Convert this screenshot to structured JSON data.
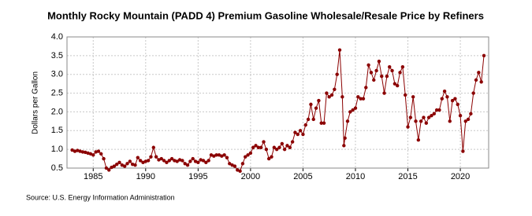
{
  "chart_data": {
    "type": "line",
    "title": "Monthly Rocky Mountain (PADD 4) Premium Gasoline Wholesale/Resale Price by Refiners",
    "y_label": "Dollars per Gallon",
    "source": "Source: U.S. Energy Information Administration",
    "color": "#8b0000",
    "grid": true,
    "xlim": [
      1982.5,
      2022.7
    ],
    "xticks": [
      1985,
      1990,
      1995,
      2000,
      2005,
      2010,
      2015,
      2020
    ],
    "ylim": [
      0.5,
      4.0
    ],
    "yticks": [
      0.5,
      {
        "value": 1,
        "label": "1.0"
      },
      1.5,
      {
        "value": 2,
        "label": "2.0"
      },
      2.5,
      {
        "value": 3,
        "label": "3.0"
      },
      3.5,
      {
        "value": 4,
        "label": "4.0"
      }
    ],
    "x": [
      1983,
      1983.25,
      1983.5,
      1983.75,
      1984,
      1984.25,
      1984.5,
      1984.75,
      1985,
      1985.25,
      1985.5,
      1985.75,
      1986,
      1986.25,
      1986.5,
      1986.75,
      1987,
      1987.25,
      1987.5,
      1987.75,
      1988,
      1988.25,
      1988.5,
      1988.75,
      1989,
      1989.25,
      1989.5,
      1989.75,
      1990,
      1990.25,
      1990.5,
      1990.75,
      1991,
      1991.25,
      1991.5,
      1991.75,
      1992,
      1992.25,
      1992.5,
      1992.75,
      1993,
      1993.25,
      1993.5,
      1993.75,
      1994,
      1994.25,
      1994.5,
      1994.75,
      1995,
      1995.25,
      1995.5,
      1995.75,
      1996,
      1996.25,
      1996.5,
      1996.75,
      1997,
      1997.25,
      1997.5,
      1997.75,
      1998,
      1998.25,
      1998.5,
      1998.75,
      1999,
      1999.25,
      1999.5,
      1999.75,
      2000,
      2000.25,
      2000.5,
      2000.75,
      2001,
      2001.25,
      2001.5,
      2001.75,
      2002,
      2002.25,
      2002.5,
      2002.75,
      2003,
      2003.25,
      2003.5,
      2003.75,
      2004,
      2004.25,
      2004.5,
      2004.75,
      2005,
      2005.25,
      2005.5,
      2005.75,
      2006,
      2006.25,
      2006.5,
      2006.75,
      2007,
      2007.25,
      2007.5,
      2007.75,
      2008,
      2008.25,
      2008.5,
      2008.75,
      2008.9,
      2009,
      2009.25,
      2009.5,
      2009.75,
      2010,
      2010.25,
      2010.5,
      2010.75,
      2011,
      2011.25,
      2011.5,
      2011.75,
      2012,
      2012.25,
      2012.5,
      2012.75,
      2013,
      2013.25,
      2013.5,
      2013.75,
      2014,
      2014.25,
      2014.5,
      2014.75,
      2015,
      2015.25,
      2015.5,
      2015.75,
      2016,
      2016.25,
      2016.5,
      2016.75,
      2017,
      2017.25,
      2017.5,
      2017.75,
      2018,
      2018.25,
      2018.5,
      2018.75,
      2019,
      2019.25,
      2019.5,
      2019.75,
      2020,
      2020.25,
      2020.5,
      2020.75,
      2021,
      2021.25,
      2021.5,
      2021.75,
      2022,
      2022.25
    ],
    "values": [
      0.98,
      0.95,
      0.97,
      0.95,
      0.93,
      0.92,
      0.9,
      0.88,
      0.85,
      0.93,
      0.95,
      0.88,
      0.75,
      0.5,
      0.45,
      0.52,
      0.55,
      0.6,
      0.65,
      0.58,
      0.55,
      0.62,
      0.68,
      0.6,
      0.58,
      0.78,
      0.7,
      0.65,
      0.68,
      0.7,
      0.8,
      1.05,
      0.8,
      0.72,
      0.75,
      0.7,
      0.65,
      0.7,
      0.75,
      0.7,
      0.68,
      0.72,
      0.7,
      0.62,
      0.58,
      0.68,
      0.75,
      0.68,
      0.65,
      0.72,
      0.7,
      0.65,
      0.7,
      0.85,
      0.82,
      0.85,
      0.85,
      0.82,
      0.85,
      0.78,
      0.62,
      0.58,
      0.55,
      0.45,
      0.42,
      0.62,
      0.8,
      0.85,
      0.9,
      1.05,
      1.1,
      1.05,
      1.05,
      1.2,
      1.0,
      0.75,
      0.8,
      1.05,
      1.0,
      1.05,
      1.15,
      1.0,
      1.1,
      1.05,
      1.2,
      1.45,
      1.4,
      1.5,
      1.4,
      1.65,
      1.8,
      2.2,
      1.8,
      2.1,
      2.3,
      1.7,
      1.7,
      2.5,
      2.4,
      2.45,
      2.6,
      3.0,
      3.65,
      2.4,
      1.1,
      1.3,
      1.75,
      2.0,
      2.05,
      2.1,
      2.4,
      2.35,
      2.35,
      2.65,
      3.25,
      3.05,
      2.85,
      3.1,
      3.35,
      2.95,
      2.5,
      2.95,
      3.2,
      3.1,
      2.75,
      2.7,
      3.05,
      3.2,
      2.45,
      1.6,
      1.85,
      2.4,
      1.75,
      1.25,
      1.75,
      1.85,
      1.7,
      1.85,
      1.9,
      1.95,
      2.05,
      2.05,
      2.35,
      2.55,
      2.4,
      1.75,
      2.3,
      2.35,
      2.2,
      1.9,
      0.95,
      1.75,
      1.8,
      1.95,
      2.5,
      2.85,
      3.05,
      2.8,
      3.5
    ]
  }
}
